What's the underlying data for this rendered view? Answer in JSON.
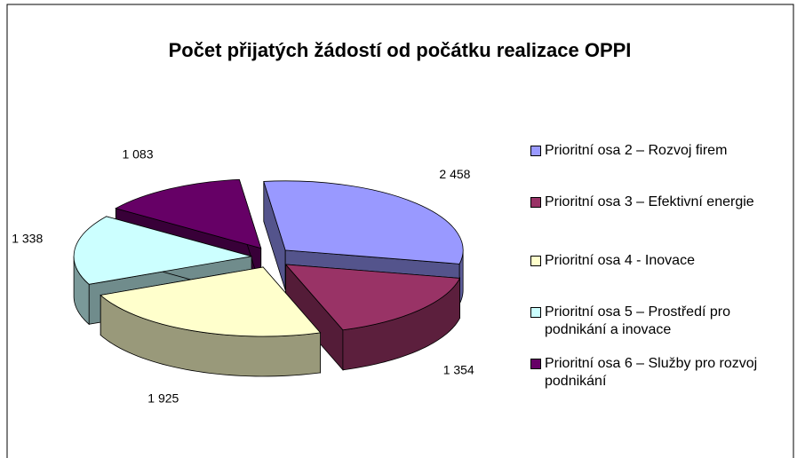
{
  "chart_data": {
    "type": "pie",
    "title": "Počet přijatých žádostí od počátku realizace OPPI",
    "categories": [
      "Prioritní osa 2 – Rozvoj firem",
      "Prioritní osa 3 – Efektivní energie",
      "Prioritní osa 4 - Inovace",
      "Prioritní osa 5 – Prostředí pro podnikání a inovace",
      "Prioritní osa 6 – Služby pro rozvoj podnikání"
    ],
    "values": [
      2458,
      1354,
      1925,
      1338,
      1083
    ],
    "value_labels": [
      "2 458",
      "1 354",
      "1 925",
      "1 338",
      "1 083"
    ],
    "colors": [
      "#9999ff",
      "#993366",
      "#ffffcc",
      "#ccffff",
      "#660066"
    ],
    "legend": "right"
  }
}
